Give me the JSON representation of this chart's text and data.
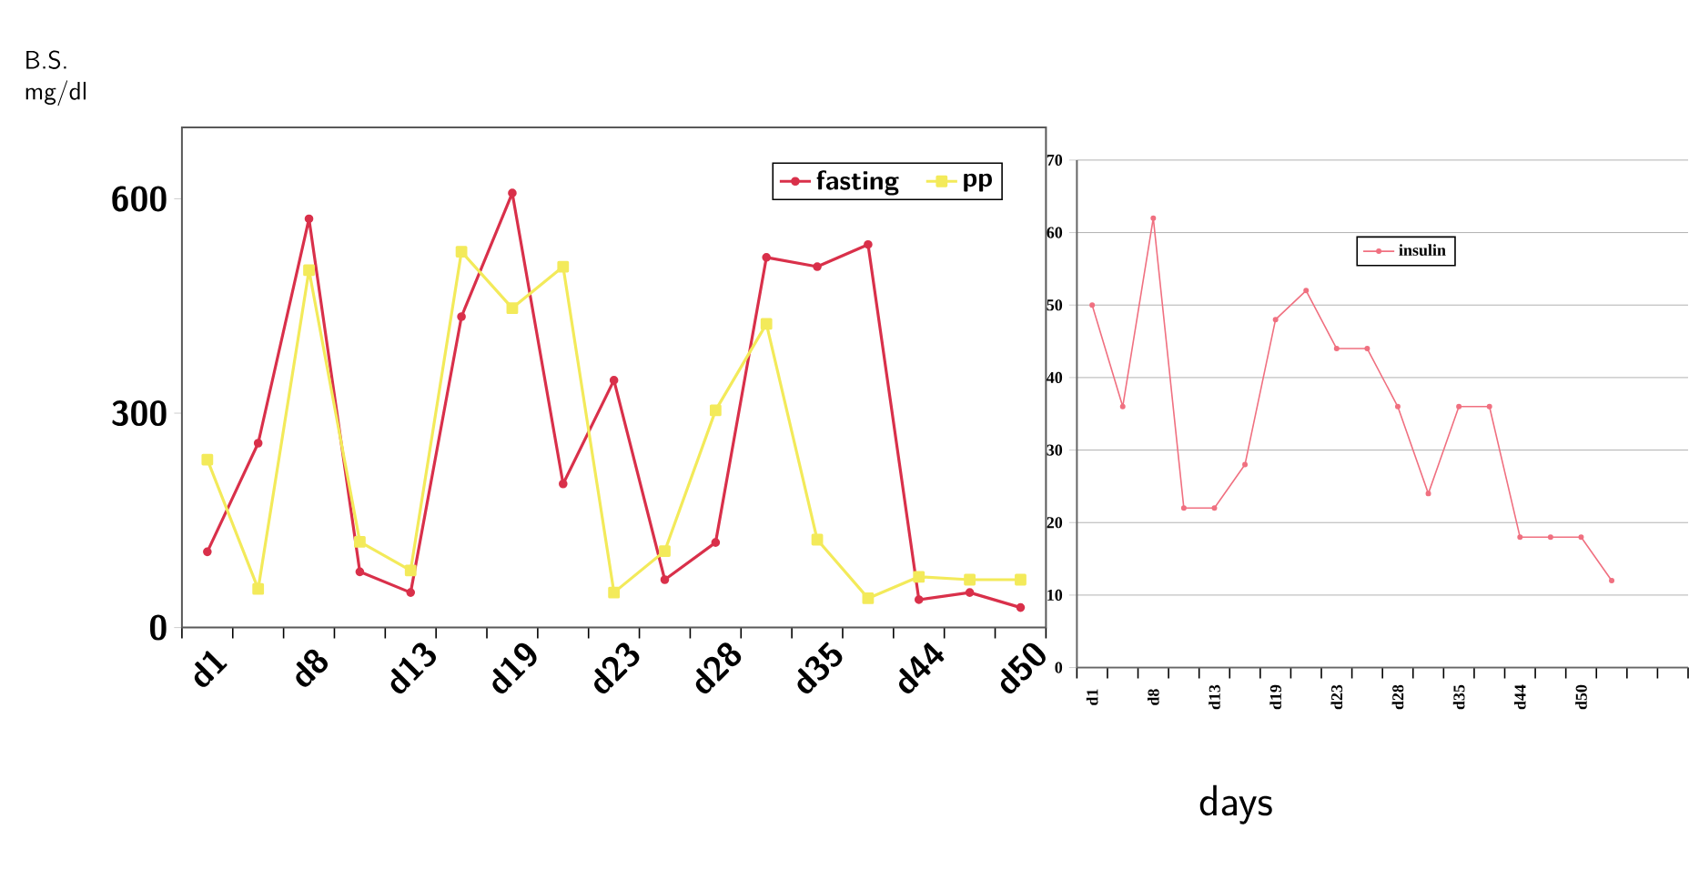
{
  "chart_data": [
    {
      "type": "line",
      "ylabel": "B.S. mg/dl",
      "categories": [
        "d1",
        null,
        "d8",
        null,
        "d13",
        null,
        "d19",
        null,
        "d23",
        null,
        "d28",
        null,
        "d35",
        null,
        "d44",
        null,
        "d50"
      ],
      "series": [
        {
          "name": "fasting",
          "color": "#d9304a",
          "marker": "circle",
          "values": [
            106,
            258,
            572,
            78,
            49,
            435,
            608,
            201,
            346,
            67,
            119,
            518,
            505,
            536,
            39,
            49,
            28
          ]
        },
        {
          "name": "pp",
          "color": "#f3ea5a",
          "marker": "square",
          "values": [
            235,
            54,
            500,
            120,
            80,
            526,
            447,
            505,
            49,
            107,
            304,
            425,
            123,
            41,
            71,
            67,
            67
          ]
        }
      ],
      "ylim": [
        0,
        700
      ],
      "yticks": [
        0,
        300,
        600
      ],
      "grid": false,
      "legend": "top right"
    },
    {
      "type": "line",
      "xlabel": "days",
      "categories": [
        "d1",
        null,
        "d8",
        null,
        "d13",
        null,
        "d19",
        null,
        "d23",
        null,
        "d28",
        null,
        "d35",
        null,
        "d44",
        null,
        "d50",
        null,
        null,
        null
      ],
      "series": [
        {
          "name": "insulin",
          "color": "#f07080",
          "marker": "circle",
          "values": [
            50,
            36,
            62,
            22,
            22,
            28,
            48,
            52,
            44,
            44,
            36,
            24,
            36,
            36,
            18,
            18,
            18,
            12,
            null,
            null
          ]
        }
      ],
      "ylim": [
        0,
        70
      ],
      "yticks": [
        0,
        10,
        20,
        30,
        40,
        50,
        60,
        70
      ],
      "grid": "y",
      "legend": "top right"
    }
  ]
}
